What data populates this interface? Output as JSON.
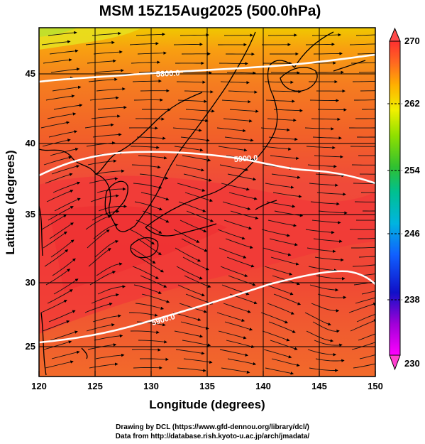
{
  "title": "MSM 15Z15Aug2025 (500.0hPa)",
  "axes": {
    "xlabel": "Longitude (degrees)",
    "ylabel": "Latitude  (degrees)",
    "xlim": [
      120,
      150
    ],
    "ylim": [
      22.5,
      47.5
    ],
    "xticks": [
      "120",
      "125",
      "130",
      "135",
      "140",
      "145",
      "150"
    ],
    "yticks": [
      "25",
      "30",
      "35",
      "40",
      "45"
    ],
    "grid": true
  },
  "colorbar": {
    "min": 230,
    "max": 270,
    "ticks": [
      "270",
      "262",
      "254",
      "246",
      "238",
      "230"
    ],
    "extend": "both"
  },
  "contours": [
    {
      "label": "5900.0"
    },
    {
      "label": "5800.0"
    },
    {
      "label": "5900.0"
    }
  ],
  "credits": {
    "line1": "Drawing by DCL (https://www.gfd-dennou.org/library/dcl/)",
    "line2": "Data from http://database.rish.kyoto-u.ac.jp/arch/jmadata/"
  }
}
